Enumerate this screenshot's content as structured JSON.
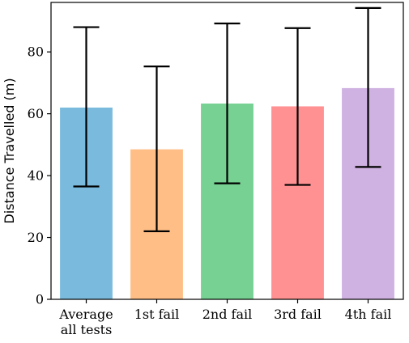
{
  "chart_data": {
    "type": "bar",
    "categories": [
      [
        "Average",
        "all tests"
      ],
      [
        "1st fail"
      ],
      [
        "2nd fail"
      ],
      [
        "3rd fail"
      ],
      [
        "4th fail"
      ]
    ],
    "values": [
      62,
      48.5,
      63.3,
      62.4,
      68.3
    ],
    "error_low": [
      36.5,
      22,
      37.5,
      37,
      42.8
    ],
    "error_high": [
      88,
      75.3,
      89.2,
      87.7,
      94.2
    ],
    "colors": [
      "#7abbdd",
      "#ffbe86",
      "#76d193",
      "#ff9193",
      "#cfb2e1"
    ],
    "title": "",
    "xlabel": "",
    "ylabel": "Distance Travelled (m)",
    "ylim": [
      0,
      96
    ],
    "yticks": [
      0,
      20,
      40,
      60,
      80
    ],
    "grid": false,
    "legend": "none"
  }
}
